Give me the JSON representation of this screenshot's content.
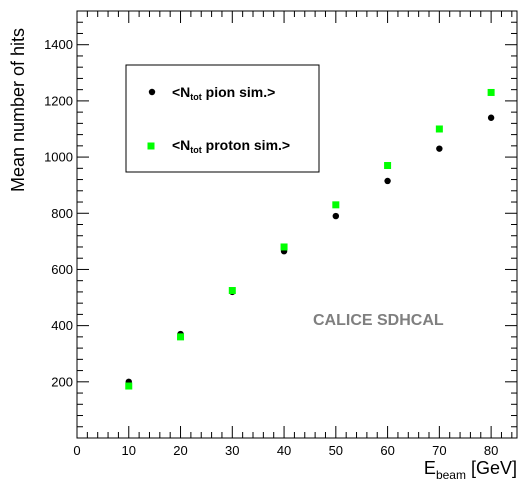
{
  "chart_data": {
    "type": "scatter",
    "xlabel": {
      "main": "E",
      "sub": "beam",
      "unit": " [GeV]"
    },
    "ylabel": "Mean number of hits",
    "xlim": [
      0,
      85
    ],
    "ylim": [
      0,
      1520
    ],
    "x_ticks": [
      0,
      10,
      20,
      30,
      40,
      50,
      60,
      70,
      80
    ],
    "y_ticks": [
      200,
      400,
      600,
      800,
      1000,
      1200,
      1400
    ],
    "grid": false,
    "legend_position": "top-left",
    "annotation": "CALICE SDHCAL",
    "series": [
      {
        "name": "<N_tot pion sim.>",
        "legend": {
          "pre": "<N",
          "sub": "tot",
          "post": " pion sim.>"
        },
        "marker": "circle",
        "color": "#000000",
        "x": [
          10,
          20,
          30,
          40,
          50,
          60,
          70,
          80
        ],
        "y": [
          200,
          370,
          520,
          665,
          790,
          915,
          1030,
          1140
        ]
      },
      {
        "name": "<N_tot proton sim.>",
        "legend": {
          "pre": "<N",
          "sub": "tot",
          "post": " proton sim.>"
        },
        "marker": "square",
        "color": "#00ff00",
        "x": [
          10,
          20,
          30,
          40,
          50,
          60,
          70,
          80
        ],
        "y": [
          185,
          360,
          525,
          680,
          830,
          970,
          1100,
          1230
        ]
      }
    ]
  }
}
